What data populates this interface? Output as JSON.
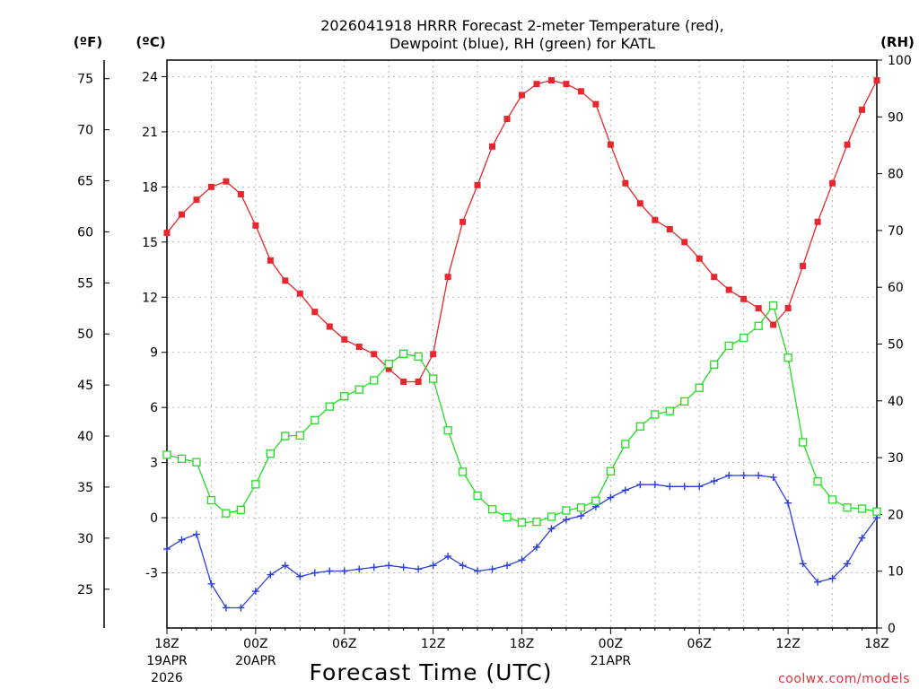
{
  "chart_data": {
    "type": "line",
    "title_line1": "2026041918 HRRR Forecast 2-meter Temperature (red),",
    "title_line2": "Dewpoint (blue), RH (green) for KATL",
    "xlabel": "Forecast Time (UTC)",
    "credit": "coolwx.com/models",
    "units": {
      "fahrenheit": "(ºF)",
      "celsius": "(ºC)",
      "rh": "(RH)"
    },
    "celsius_axis": {
      "range": [
        -6,
        24.9
      ],
      "ticks": [
        "-3",
        "0",
        "3",
        "6",
        "9",
        "12",
        "15",
        "18",
        "21",
        "24"
      ],
      "tick_values": [
        -3,
        0,
        3,
        6,
        9,
        12,
        15,
        18,
        21,
        24
      ]
    },
    "fahrenheit_axis": {
      "ticks": [
        "25",
        "30",
        "35",
        "40",
        "45",
        "50",
        "55",
        "60",
        "65",
        "70",
        "75"
      ],
      "tick_values": [
        25,
        30,
        35,
        40,
        45,
        50,
        55,
        60,
        65,
        70,
        75
      ]
    },
    "rh_axis": {
      "range": [
        0,
        100
      ],
      "ticks": [
        "0",
        "10",
        "20",
        "30",
        "40",
        "50",
        "60",
        "70",
        "80",
        "90",
        "100"
      ],
      "tick_values": [
        0,
        10,
        20,
        30,
        40,
        50,
        60,
        70,
        80,
        90,
        100
      ]
    },
    "x_axis": {
      "range_hours": [
        0,
        48
      ],
      "ticks": [
        {
          "hour": 0,
          "label": "18Z",
          "sub1": "19APR",
          "sub2": "2026"
        },
        {
          "hour": 6,
          "label": "00Z",
          "sub1": "20APR",
          "sub2": ""
        },
        {
          "hour": 12,
          "label": "06Z",
          "sub1": "",
          "sub2": ""
        },
        {
          "hour": 18,
          "label": "12Z",
          "sub1": "",
          "sub2": ""
        },
        {
          "hour": 24,
          "label": "18Z",
          "sub1": "",
          "sub2": ""
        },
        {
          "hour": 30,
          "label": "00Z",
          "sub1": "21APR",
          "sub2": ""
        },
        {
          "hour": 36,
          "label": "06Z",
          "sub1": "",
          "sub2": ""
        },
        {
          "hour": 42,
          "label": "12Z",
          "sub1": "",
          "sub2": ""
        },
        {
          "hour": 48,
          "label": "18Z",
          "sub1": "",
          "sub2": ""
        }
      ]
    },
    "series": [
      {
        "name": "Temperature (C)",
        "color": "#e8262d",
        "axis": "celsius",
        "marker": "filled-square",
        "values": [
          15.5,
          16.5,
          17.3,
          18.0,
          18.3,
          17.6,
          15.9,
          14.0,
          12.9,
          12.2,
          11.2,
          10.4,
          9.7,
          9.3,
          8.9,
          8.1,
          7.4,
          7.4,
          8.9,
          13.1,
          16.1,
          18.1,
          20.2,
          21.7,
          23.0,
          23.6,
          23.8,
          23.6,
          23.2,
          22.5,
          20.3,
          18.2,
          17.1,
          16.2,
          15.7,
          15.0,
          14.1,
          13.1,
          12.4,
          11.9,
          11.4,
          10.5,
          11.4,
          13.7,
          16.1,
          18.2,
          20.3,
          22.2,
          23.8
        ]
      },
      {
        "name": "Dewpoint (C)",
        "color": "#2b3fe0",
        "axis": "celsius",
        "marker": "plus",
        "values": [
          -1.7,
          -1.2,
          -0.9,
          -3.6,
          -4.9,
          -4.9,
          -4.0,
          -3.1,
          -2.6,
          -3.2,
          -3.0,
          -2.9,
          -2.9,
          -2.8,
          -2.7,
          -2.6,
          -2.7,
          -2.8,
          -2.6,
          -2.1,
          -2.6,
          -2.9,
          -2.8,
          -2.6,
          -2.3,
          -1.6,
          -0.6,
          -0.1,
          0.1,
          0.6,
          1.1,
          1.5,
          1.8,
          1.8,
          1.7,
          1.7,
          1.7,
          2.0,
          2.3,
          2.3,
          2.3,
          2.2,
          0.8,
          -2.5,
          -3.5,
          -3.3,
          -2.5,
          -1.1,
          0.0
        ]
      },
      {
        "name": "RH (%)",
        "color": "#22dd22",
        "axis": "rh",
        "marker": "open-square",
        "values": [
          30.5,
          29.8,
          29.2,
          22.5,
          20.2,
          20.8,
          25.3,
          30.7,
          33.8,
          33.9,
          36.6,
          39.0,
          40.8,
          42.0,
          43.6,
          46.5,
          48.3,
          47.8,
          43.9,
          34.8,
          27.5,
          23.3,
          20.9,
          19.5,
          18.6,
          18.7,
          19.6,
          20.7,
          21.2,
          22.4,
          27.6,
          32.4,
          35.5,
          37.6,
          38.2,
          39.9,
          42.3,
          46.4,
          49.7,
          51.1,
          53.2,
          56.8,
          47.6,
          32.7,
          25.8,
          22.6,
          21.2,
          21.0,
          20.5
        ]
      }
    ]
  }
}
